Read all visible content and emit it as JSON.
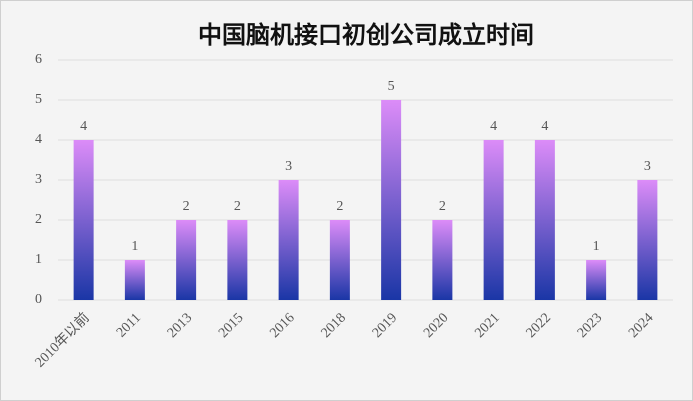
{
  "chart_data": {
    "type": "bar",
    "title": "中国脑机接口初创公司成立时间",
    "categories": [
      "2010年以前",
      "2011",
      "2013",
      "2015",
      "2016",
      "2018",
      "2019",
      "2020",
      "2021",
      "2022",
      "2023",
      "2024"
    ],
    "values": [
      4,
      1,
      2,
      2,
      3,
      2,
      5,
      2,
      4,
      4,
      1,
      3
    ],
    "gradient": [
      "#dc8cf8",
      "#1a36a6"
    ],
    "ylim": [
      0,
      6
    ],
    "yticks": [
      0,
      1,
      2,
      3,
      4,
      5,
      6
    ],
    "grid": true,
    "data_labels": true
  }
}
